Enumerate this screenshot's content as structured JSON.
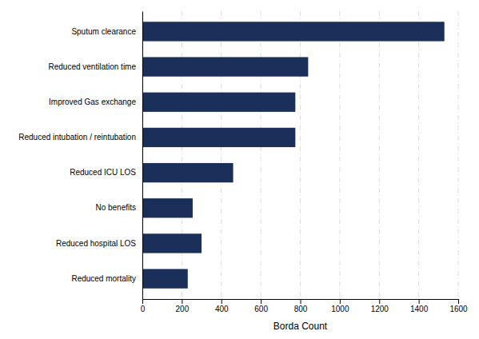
{
  "chart_data": {
    "type": "bar",
    "orientation": "horizontal",
    "categories": [
      "Reduced mortality",
      "Reduced hospital LOS",
      "No benefits",
      "Reduced ICU LOS",
      "Reduced intubation / reintubation",
      "Improved Gas exchange",
      "Reduced ventilation time",
      "Sputum clearance"
    ],
    "values": [
      230,
      300,
      255,
      460,
      775,
      775,
      840,
      1530
    ],
    "color": "#1a2f5a",
    "xlabel": "Borda Count",
    "xlim": [
      0,
      1600
    ],
    "xticks": [
      0,
      200,
      400,
      600,
      800,
      1000,
      1200,
      1400,
      1600
    ],
    "grid": true
  }
}
